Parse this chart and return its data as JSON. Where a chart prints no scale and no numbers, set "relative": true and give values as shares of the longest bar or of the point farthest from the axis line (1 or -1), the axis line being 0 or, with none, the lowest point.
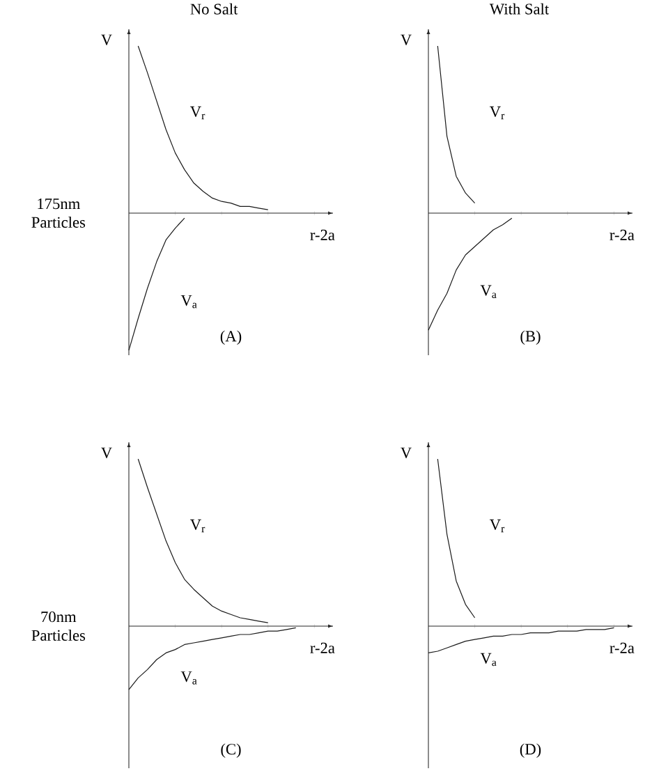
{
  "chart_data": [
    {
      "type": "line",
      "title": "No Salt",
      "xlabel": "r-2a",
      "ylabel": "V",
      "relative": true,
      "annotations": [
        "(A)",
        "175nm Particles"
      ],
      "categories": [
        null,
        null,
        null,
        null,
        null,
        null,
        null,
        null,
        null,
        null,
        null,
        null,
        null,
        null,
        null,
        null,
        null,
        null,
        null,
        null,
        null,
        null
      ],
      "series": [
        {
          "name": "V$_{r}$",
          "color": "#1a1a1a",
          "values": [
            null,
            1.0,
            0.84,
            0.67,
            0.5,
            0.36,
            0.26,
            0.18,
            0.13,
            0.09,
            0.07,
            0.06,
            0.04,
            0.04,
            0.03,
            0.02,
            null,
            null,
            null,
            null,
            null,
            null
          ]
        },
        {
          "name": "V$_{a}$",
          "color": "#1a1a1a",
          "values": [
            -0.82,
            -0.63,
            -0.45,
            -0.29,
            -0.16,
            -0.09,
            -0.03,
            null,
            null,
            null,
            null,
            null,
            null,
            null,
            null,
            null,
            null,
            null,
            null,
            null,
            null,
            null
          ]
        }
      ]
    },
    {
      "type": "line",
      "title": "With Salt",
      "xlabel": "r-2a",
      "ylabel": "V",
      "relative": true,
      "annotations": [
        "(B)"
      ],
      "categories": [
        null,
        null,
        null,
        null,
        null,
        null,
        null,
        null,
        null,
        null,
        null,
        null,
        null,
        null,
        null,
        null,
        null,
        null,
        null,
        null,
        null,
        null
      ],
      "series": [
        {
          "name": "V$_{r}$",
          "color": "#1a1a1a",
          "values": [
            null,
            1.0,
            0.46,
            0.22,
            0.12,
            0.06,
            null,
            null,
            null,
            null,
            null,
            null,
            null,
            null,
            null,
            null,
            null,
            null,
            null,
            null,
            null,
            null
          ]
        },
        {
          "name": "V$_{a}$",
          "color": "#1a1a1a",
          "values": [
            -0.7,
            -0.58,
            -0.48,
            -0.34,
            -0.25,
            -0.2,
            -0.15,
            -0.1,
            -0.07,
            -0.03,
            null,
            null,
            null,
            null,
            null,
            null,
            null,
            null,
            null,
            null,
            null,
            null
          ]
        }
      ]
    },
    {
      "type": "line",
      "xlabel": "r-2a",
      "ylabel": "V",
      "relative": true,
      "annotations": [
        "(C)",
        "70nm Particles"
      ],
      "categories": [
        null,
        null,
        null,
        null,
        null,
        null,
        null,
        null,
        null,
        null,
        null,
        null,
        null,
        null,
        null,
        null,
        null,
        null,
        null,
        null,
        null,
        null
      ],
      "series": [
        {
          "name": "V$_{r}$",
          "color": "#1a1a1a",
          "values": [
            null,
            1.0,
            0.83,
            0.67,
            0.51,
            0.38,
            0.28,
            0.22,
            0.17,
            0.12,
            0.09,
            0.07,
            0.05,
            0.04,
            0.03,
            0.02,
            null,
            null,
            null,
            null,
            null,
            null
          ]
        },
        {
          "name": "V$_{a}$",
          "color": "#1a1a1a",
          "values": [
            -0.38,
            -0.31,
            -0.26,
            -0.2,
            -0.16,
            -0.14,
            -0.11,
            -0.1,
            -0.09,
            -0.08,
            -0.07,
            -0.06,
            -0.05,
            -0.05,
            -0.04,
            -0.03,
            -0.03,
            -0.02,
            -0.01,
            null,
            null,
            null
          ]
        }
      ]
    },
    {
      "type": "line",
      "xlabel": "r-2a",
      "ylabel": "V",
      "relative": true,
      "annotations": [
        "(D)"
      ],
      "categories": [
        null,
        null,
        null,
        null,
        null,
        null,
        null,
        null,
        null,
        null,
        null,
        null,
        null,
        null,
        null,
        null,
        null,
        null,
        null,
        null,
        null,
        null
      ],
      "series": [
        {
          "name": "V$_{r}$",
          "color": "#1a1a1a",
          "values": [
            null,
            1.0,
            0.55,
            0.27,
            0.13,
            0.05,
            null,
            null,
            null,
            null,
            null,
            null,
            null,
            null,
            null,
            null,
            null,
            null,
            null,
            null,
            null,
            null
          ]
        },
        {
          "name": "V$_{a}$",
          "color": "#1a1a1a",
          "values": [
            -0.16,
            -0.15,
            -0.13,
            -0.11,
            -0.09,
            -0.08,
            -0.07,
            -0.06,
            -0.06,
            -0.05,
            -0.05,
            -0.04,
            -0.04,
            -0.04,
            -0.03,
            -0.03,
            -0.03,
            -0.02,
            -0.02,
            -0.02,
            -0.01,
            null
          ]
        }
      ]
    }
  ]
}
